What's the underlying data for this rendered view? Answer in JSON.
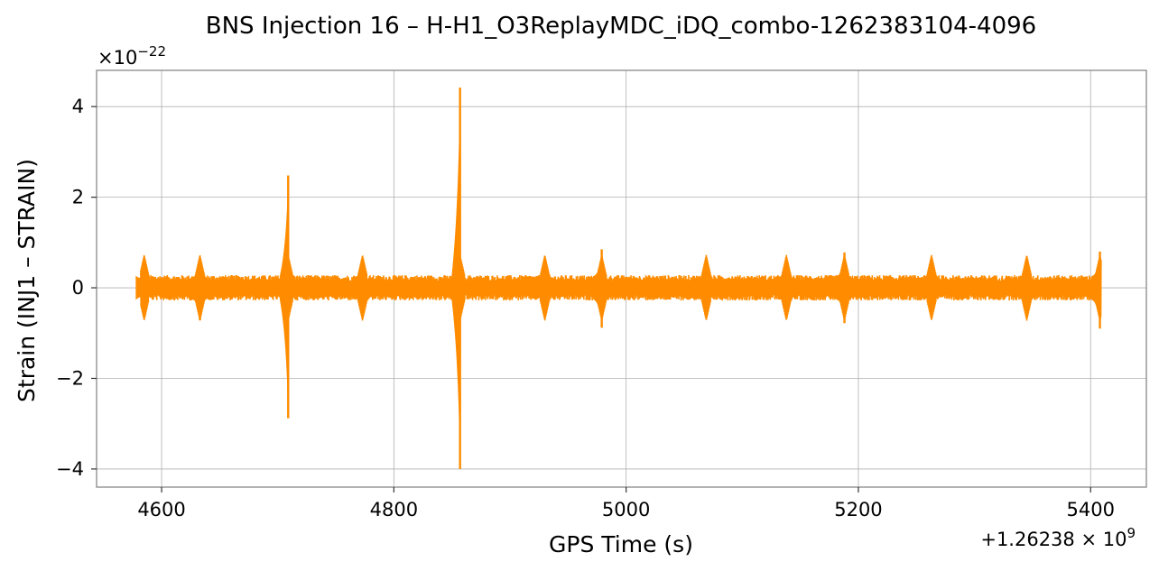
{
  "chart_data": {
    "type": "line",
    "title": "BNS Injection 16 – H-H1_O3ReplayMDC_iDQ_combo-1262383104-4096",
    "xlabel": "GPS Time (s)",
    "ylabel": "Strain (INJ1 – STRAIN)",
    "x_offset_label": "+1.26238 × 10",
    "x_offset_exponent": "9",
    "y_multiplier_label": "×10",
    "y_multiplier_exponent": "−22",
    "xlim": [
      1262384544,
      1262385448
    ],
    "ylim": [
      -4.4,
      4.8
    ],
    "x_ticks": [
      1262384600,
      1262384800,
      1262385000,
      1262385200,
      1262385400
    ],
    "x_tick_labels": [
      "4600",
      "4800",
      "5000",
      "5200",
      "5400"
    ],
    "y_ticks": [
      -4,
      -2,
      0,
      2,
      4
    ],
    "y_tick_labels": [
      "−4",
      "−2",
      "0",
      "2",
      "4"
    ],
    "grid": true,
    "series": [
      {
        "color": "#ff8c00",
        "x_start": 1262384582,
        "x_end": 1262385409,
        "noise_amplitude": 0.28,
        "spikes": [
          {
            "x": 1262384585,
            "ymax": 0.4,
            "ymin": -0.35
          },
          {
            "x": 1262384633,
            "ymax": 0.55,
            "ymin": -0.72
          },
          {
            "x": 1262384709,
            "ymax": 2.48,
            "ymin": -2.88
          },
          {
            "x": 1262384773,
            "ymax": 0.45,
            "ymin": -0.5
          },
          {
            "x": 1262384857,
            "ymax": 4.42,
            "ymin": -4.0
          },
          {
            "x": 1262384930,
            "ymax": 0.35,
            "ymin": -0.38
          },
          {
            "x": 1262384979,
            "ymax": 0.85,
            "ymin": -0.88
          },
          {
            "x": 1262385069,
            "ymax": 0.36,
            "ymin": -0.3
          },
          {
            "x": 1262385138,
            "ymax": 0.57,
            "ymin": -0.62
          },
          {
            "x": 1262385188,
            "ymax": 0.78,
            "ymin": -0.78
          },
          {
            "x": 1262385263,
            "ymax": 0.52,
            "ymin": -0.42
          },
          {
            "x": 1262385345,
            "ymax": 0.3,
            "ymin": -0.22
          },
          {
            "x": 1262385408,
            "ymax": 0.8,
            "ymin": -0.9
          }
        ]
      }
    ]
  }
}
